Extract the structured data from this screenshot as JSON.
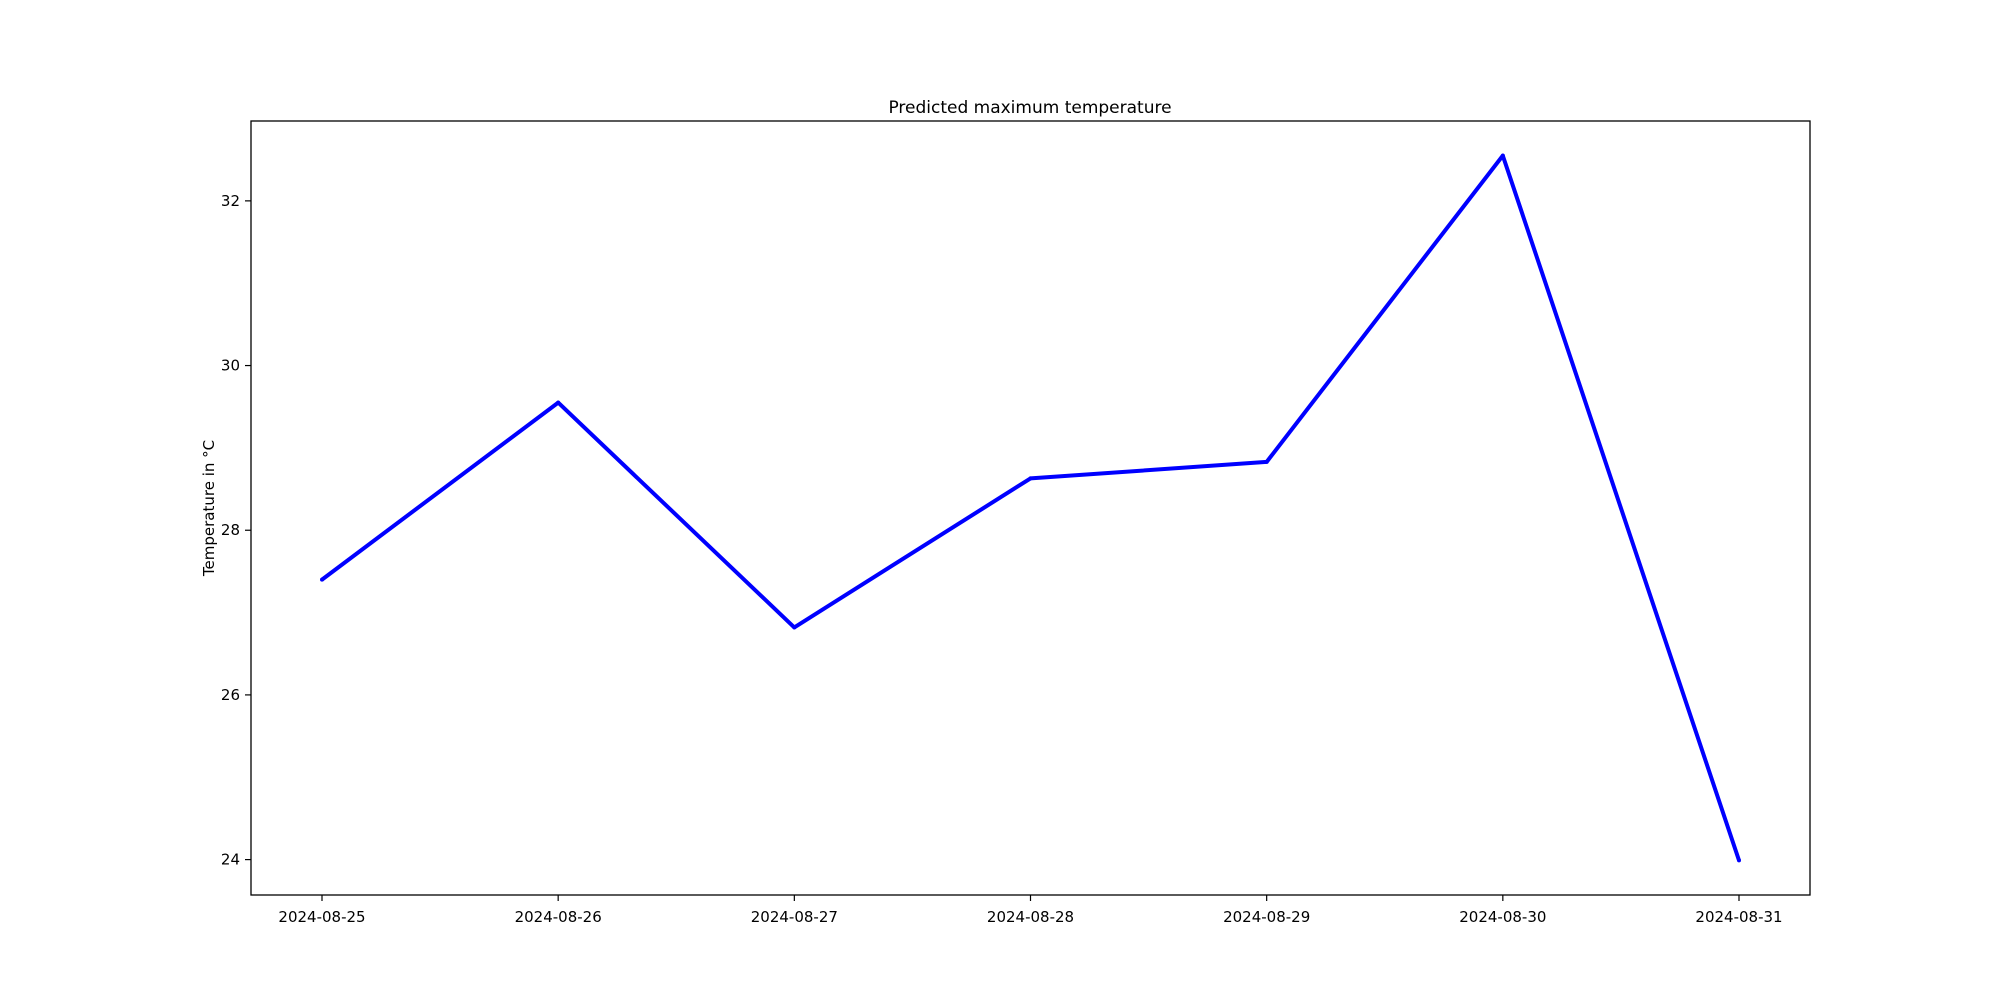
{
  "chart_data": {
    "type": "line",
    "title": "Predicted maximum temperature",
    "xlabel": "",
    "ylabel": "Temperature in °C",
    "x": [
      "2024-08-25",
      "2024-08-26",
      "2024-08-27",
      "2024-08-28",
      "2024-08-29",
      "2024-08-30",
      "2024-08-31"
    ],
    "series": [
      {
        "values": [
          27.4,
          29.55,
          26.82,
          28.63,
          28.83,
          32.55,
          23.99
        ],
        "color": "#0000ff"
      }
    ],
    "yticks": [
      "24",
      "26",
      "28",
      "30",
      "32"
    ],
    "ylim": [
      23.57,
      32.97
    ],
    "grid": false,
    "legend": "none"
  }
}
